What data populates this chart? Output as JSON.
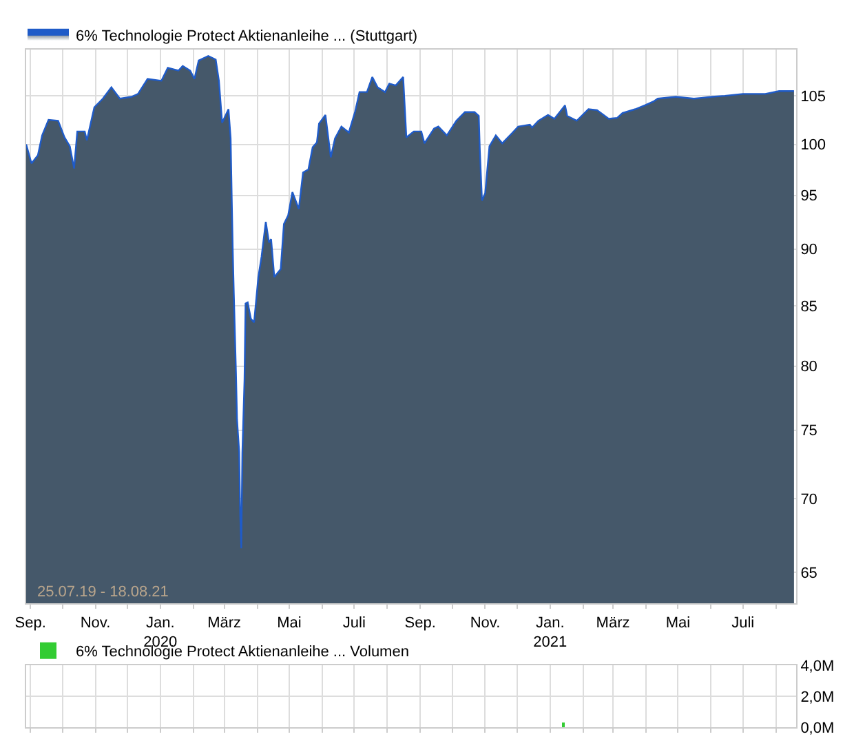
{
  "chart_data": [
    {
      "type": "area",
      "log": true,
      "grid": true,
      "legend": "top left",
      "marker": "none",
      "x": [
        "2019-08-28",
        "2019-09-02",
        "2019-09-08",
        "2019-09-12",
        "2019-09-18",
        "2019-09-27",
        "2019-10-03",
        "2019-10-08",
        "2019-10-12",
        "2019-10-15",
        "2019-10-22",
        "2019-10-24",
        "2019-10-31",
        "2019-11-08",
        "2019-11-16",
        "2019-11-24",
        "2019-12-05",
        "2019-12-11",
        "2019-12-20",
        "2020-01-02",
        "2020-01-08",
        "2020-01-18",
        "2020-01-22",
        "2020-01-29",
        "2020-02-02",
        "2020-02-06",
        "2020-02-15",
        "2020-02-22",
        "2020-02-25",
        "2020-02-28",
        "2020-03-05",
        "2020-03-07",
        "2020-03-08",
        "2020-03-09",
        "2020-03-10",
        "2020-03-12",
        "2020-03-13",
        "2020-03-15",
        "2020-03-16",
        "2020-03-17",
        "2020-03-18",
        "2020-03-20",
        "2020-03-21",
        "2020-03-23",
        "2020-03-26",
        "2020-03-29",
        "2020-04-02",
        "2020-04-05",
        "2020-04-09",
        "2020-04-12",
        "2020-04-14",
        "2020-04-17",
        "2020-04-23",
        "2020-04-26",
        "2020-04-30",
        "2020-05-04",
        "2020-05-10",
        "2020-05-14",
        "2020-05-19",
        "2020-05-23",
        "2020-05-27",
        "2020-05-29",
        "2020-06-04",
        "2020-06-09",
        "2020-06-13",
        "2020-06-19",
        "2020-06-26",
        "2020-07-02",
        "2020-07-06",
        "2020-07-13",
        "2020-07-18",
        "2020-07-23",
        "2020-07-30",
        "2020-08-03",
        "2020-08-09",
        "2020-08-16",
        "2020-08-19",
        "2020-08-26",
        "2020-09-02",
        "2020-09-05",
        "2020-09-14",
        "2020-09-18",
        "2020-09-26",
        "2020-10-05",
        "2020-10-13",
        "2020-10-22",
        "2020-10-26",
        "2020-10-27",
        "2020-10-29",
        "2020-11-01",
        "2020-11-05",
        "2020-11-11",
        "2020-11-17",
        "2020-11-26",
        "2020-12-02",
        "2020-12-13",
        "2020-12-15",
        "2020-12-21",
        "2020-12-30",
        "2021-01-05",
        "2021-01-15",
        "2021-01-17",
        "2021-01-26",
        "2021-02-06",
        "2021-02-14",
        "2021-02-25",
        "2021-03-05",
        "2021-03-10",
        "2021-03-22",
        "2021-03-31",
        "2021-04-08",
        "2021-04-12",
        "2021-04-29",
        "2021-05-16",
        "2021-06-02",
        "2021-06-14",
        "2021-07-01",
        "2021-07-22",
        "2021-08-04",
        "2021-08-18"
      ],
      "series": [
        {
          "name": "6% Technologie Protect Aktienanleihe ... (Stuttgart)",
          "color": "#1f5bc8",
          "values": [
            100.0,
            98.1,
            98.9,
            100.9,
            102.5,
            102.4,
            100.7,
            99.8,
            97.6,
            101.3,
            101.3,
            100.4,
            103.8,
            104.7,
            105.9,
            104.7,
            104.9,
            105.2,
            106.8,
            106.6,
            108.0,
            107.7,
            108.2,
            107.7,
            106.8,
            108.8,
            109.3,
            108.9,
            106.6,
            102.2,
            103.6,
            100.6,
            94.9,
            89.9,
            86.0,
            79.5,
            75.8,
            73.4,
            68.8,
            66.6,
            73.3,
            78.9,
            85.2,
            85.3,
            83.9,
            83.6,
            87.5,
            89.3,
            92.5,
            90.6,
            90.9,
            87.5,
            88.2,
            92.3,
            93.1,
            95.3,
            93.7,
            97.2,
            97.5,
            99.7,
            100.2,
            102.1,
            103.0,
            98.7,
            100.6,
            101.8,
            101.2,
            103.4,
            105.4,
            105.4,
            107.0,
            105.9,
            105.4,
            106.3,
            106.1,
            107.0,
            100.7,
            101.3,
            101.3,
            100.1,
            101.6,
            101.8,
            100.9,
            102.4,
            103.3,
            103.3,
            102.9,
            99.4,
            94.5,
            95.2,
            99.8,
            100.9,
            100.1,
            101.1,
            101.8,
            102.0,
            101.7,
            102.4,
            103.0,
            102.6,
            104.0,
            102.9,
            102.4,
            103.6,
            103.5,
            102.6,
            102.7,
            103.2,
            103.6,
            104.0,
            104.4,
            104.7,
            104.9,
            104.7,
            104.9,
            105.0,
            105.2,
            105.2,
            105.5,
            105.5
          ]
        }
      ],
      "xlim": [
        "2019-08-28",
        "2021-08-20"
      ],
      "ylim": [
        63,
        110
      ],
      "yticks": [
        65,
        70,
        75,
        80,
        85,
        90,
        95,
        100,
        105
      ],
      "xticks": [
        {
          "value": "2019-09-01",
          "label": "Sep."
        },
        {
          "value": "2019-10-01",
          "label": null
        },
        {
          "value": "2019-11-01",
          "label": "Nov."
        },
        {
          "value": "2019-12-01",
          "label": null
        },
        {
          "value": "2020-01-01",
          "label": "Jan.\n2020"
        },
        {
          "value": "2020-02-01",
          "label": null
        },
        {
          "value": "2020-03-01",
          "label": "März"
        },
        {
          "value": "2020-04-01",
          "label": null
        },
        {
          "value": "2020-05-01",
          "label": "Mai"
        },
        {
          "value": "2020-06-01",
          "label": null
        },
        {
          "value": "2020-07-01",
          "label": "Juli"
        },
        {
          "value": "2020-08-01",
          "label": null
        },
        {
          "value": "2020-09-01",
          "label": "Sep."
        },
        {
          "value": "2020-10-01",
          "label": null
        },
        {
          "value": "2020-11-01",
          "label": "Nov."
        },
        {
          "value": "2020-12-01",
          "label": null
        },
        {
          "value": "2021-01-01",
          "label": "Jan.\n2021"
        },
        {
          "value": "2021-02-01",
          "label": null
        },
        {
          "value": "2021-03-01",
          "label": "März"
        },
        {
          "value": "2021-04-01",
          "label": null
        },
        {
          "value": "2021-05-01",
          "label": "Mai"
        },
        {
          "value": "2021-06-01",
          "label": null
        },
        {
          "value": "2021-07-01",
          "label": "Juli"
        },
        {
          "value": "2021-08-01",
          "label": null
        }
      ],
      "annotations": [
        "25.07.19 - 18.08.21"
      ]
    },
    {
      "type": "bar",
      "grid": true,
      "legend": "top left",
      "tick_labels": "y",
      "x": [
        "2021-01-13"
      ],
      "series": [
        {
          "name": "6% Technologie Protect Aktienanleihe ... Volumen",
          "color": "#33cc33",
          "values": [
            300000
          ]
        }
      ],
      "xlim": [
        "2019-08-28",
        "2021-08-20"
      ],
      "ylim": [
        0,
        4000000
      ],
      "yticks": [
        {
          "value": 0,
          "label": "0,0M"
        },
        {
          "value": 2000000,
          "label": "2,0M"
        },
        {
          "value": 4000000,
          "label": "4,0M"
        }
      ],
      "xticks": [
        {
          "value": "2019-09-01",
          "label": null
        },
        {
          "value": "2019-10-01",
          "label": null
        },
        {
          "value": "2019-11-01",
          "label": null
        },
        {
          "value": "2019-12-01",
          "label": null
        },
        {
          "value": "2020-01-01",
          "label": null
        },
        {
          "value": "2020-02-01",
          "label": null
        },
        {
          "value": "2020-03-01",
          "label": null
        },
        {
          "value": "2020-04-01",
          "label": null
        },
        {
          "value": "2020-05-01",
          "label": null
        },
        {
          "value": "2020-06-01",
          "label": null
        },
        {
          "value": "2020-07-01",
          "label": null
        },
        {
          "value": "2020-08-01",
          "label": null
        },
        {
          "value": "2020-09-01",
          "label": null
        },
        {
          "value": "2020-10-01",
          "label": null
        },
        {
          "value": "2020-11-01",
          "label": null
        },
        {
          "value": "2020-12-01",
          "label": null
        },
        {
          "value": "2021-01-01",
          "label": null
        },
        {
          "value": "2021-02-01",
          "label": null
        },
        {
          "value": "2021-03-01",
          "label": null
        },
        {
          "value": "2021-04-01",
          "label": null
        },
        {
          "value": "2021-05-01",
          "label": null
        },
        {
          "value": "2021-06-01",
          "label": null
        },
        {
          "value": "2021-07-01",
          "label": null
        },
        {
          "value": "2021-08-01",
          "label": null
        }
      ]
    }
  ]
}
